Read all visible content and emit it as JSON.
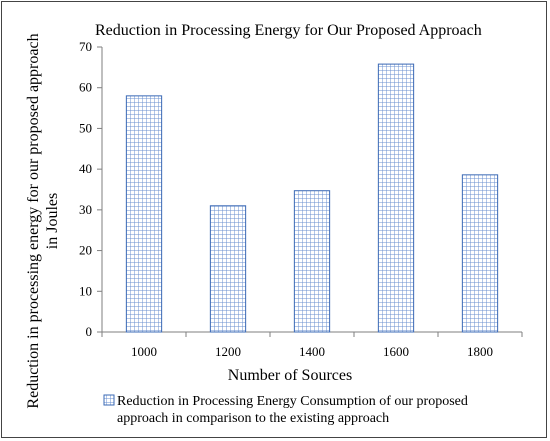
{
  "chart_data": {
    "type": "bar",
    "title": "Reduction in  Processing Energy for Our Proposed Approach",
    "xlabel": "Number of Sources",
    "ylabel_lines": [
      "Reduction in processing energy for our proposed approach",
      "in Joules"
    ],
    "categories": [
      "1000",
      "1200",
      "1400",
      "1600",
      "1800"
    ],
    "series": [
      {
        "name": "Reduction in Processing Energy Consumption of our proposed approach in comparison to the existing approach",
        "values": [
          58,
          31,
          34.7,
          65.8,
          38.6
        ]
      }
    ],
    "ylim": [
      0,
      70
    ],
    "yticks": [
      0,
      10,
      20,
      30,
      40,
      50,
      60,
      70
    ],
    "grid": false,
    "legend_position": "bottom",
    "legend_lines": [
      "Reduction in Processing Energy Consumption of our proposed",
      "approach in comparison to the existing approach"
    ],
    "colors": {
      "bar_stroke": "#3a68b5",
      "bar_hatch": "#6a8fcf",
      "axis": "#7f7f7f"
    }
  }
}
